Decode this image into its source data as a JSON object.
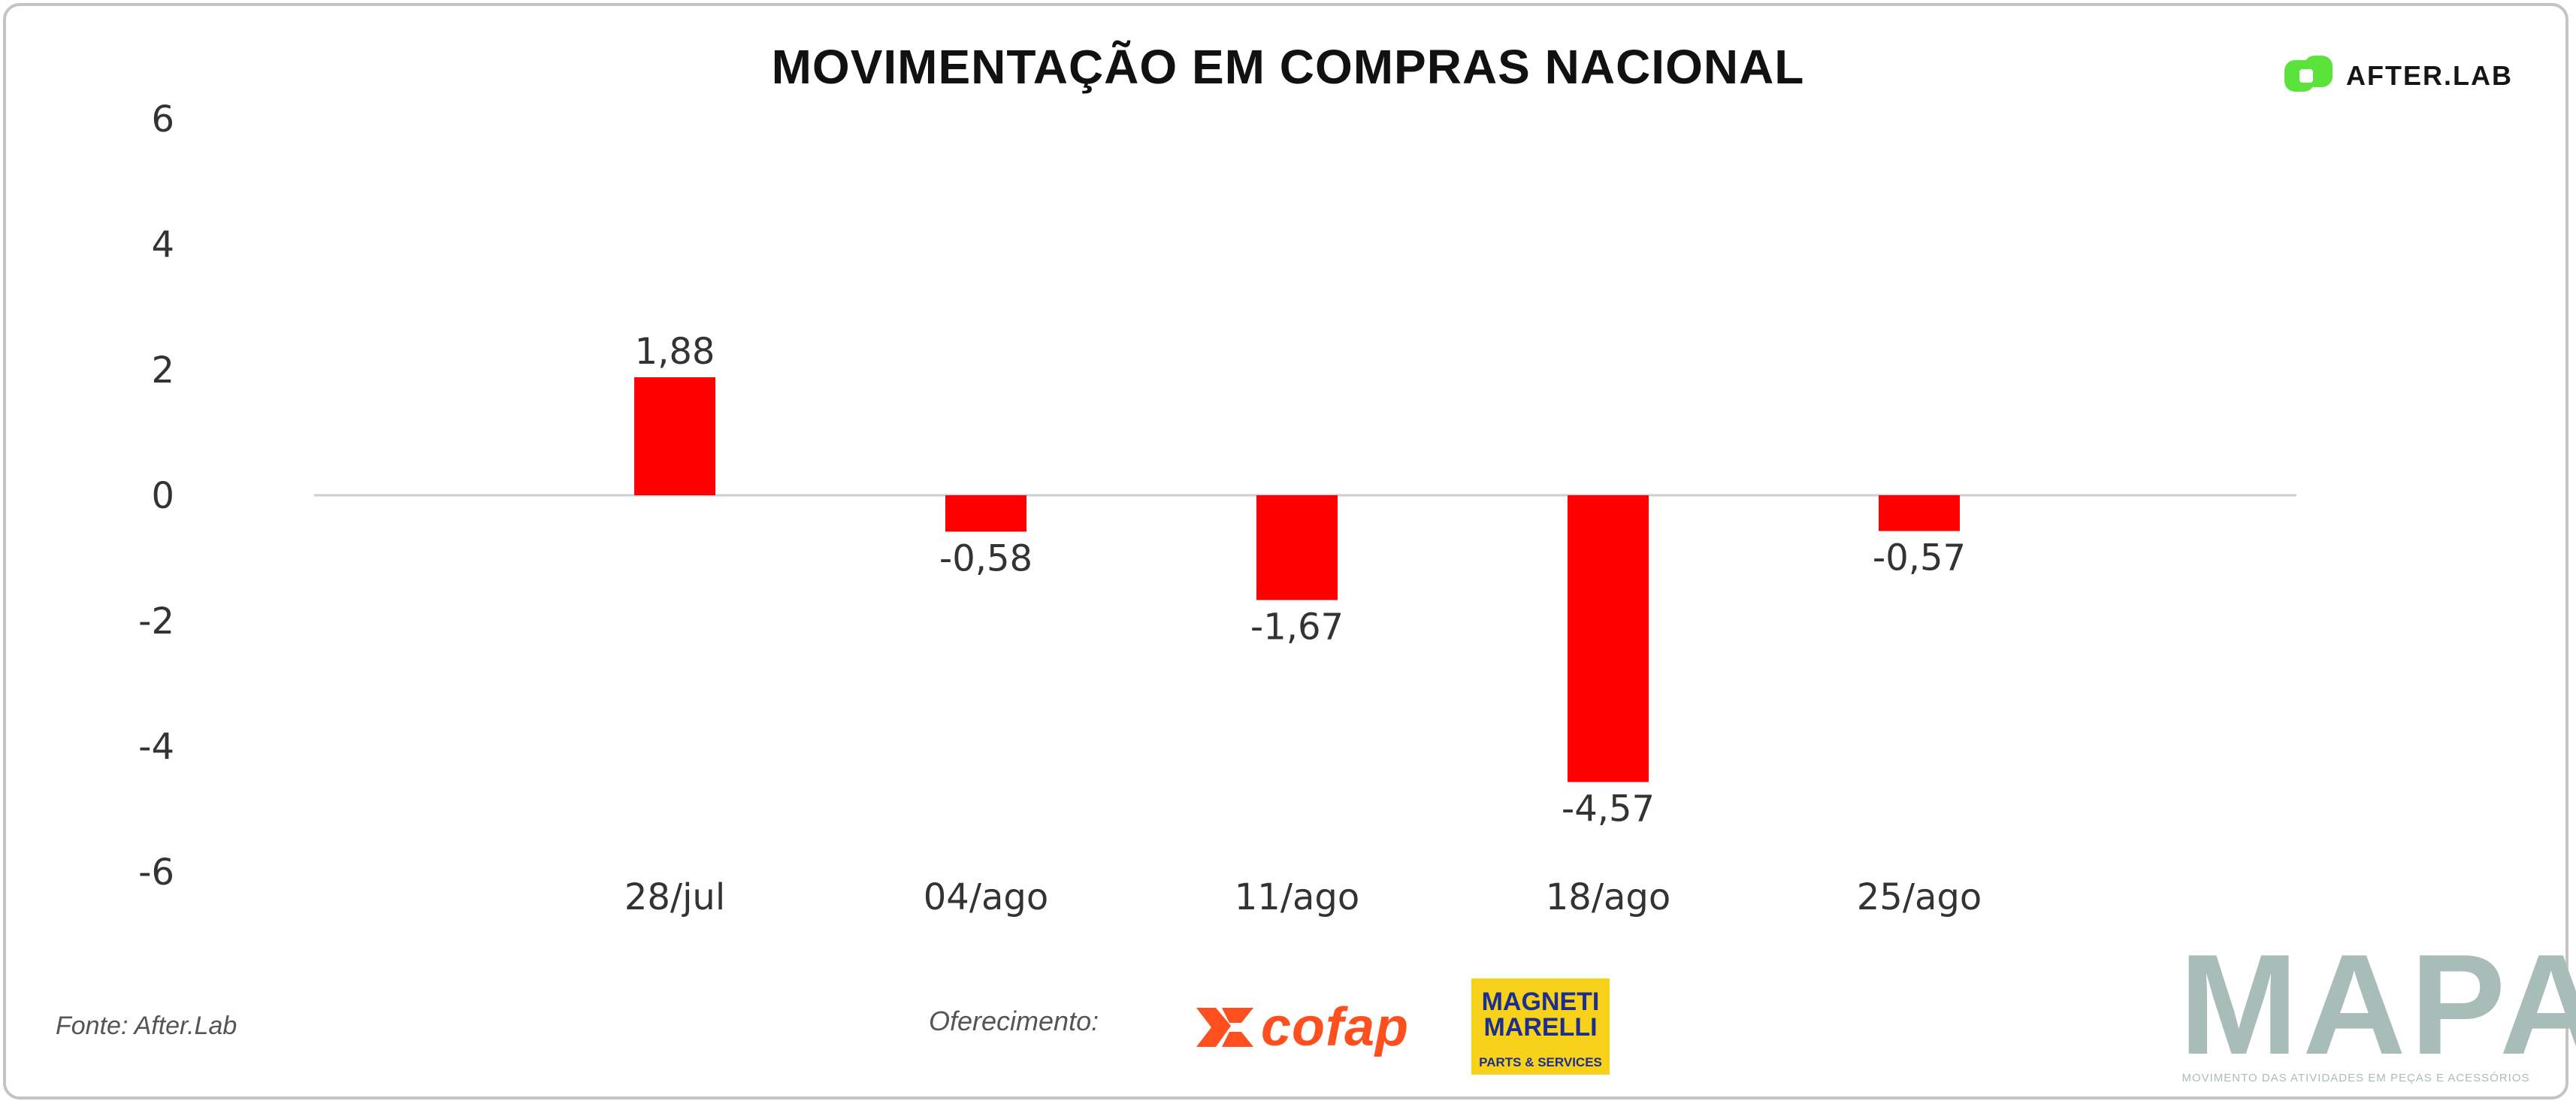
{
  "header": {
    "title": "MOVIMENTAÇÃO EM COMPRAS NACIONAL",
    "brand": "AFTER.LAB",
    "brand_color": "#5be33b"
  },
  "chart_data": {
    "type": "bar",
    "title": "MOVIMENTAÇÃO EM COMPRAS NACIONAL",
    "categories": [
      "28/jul",
      "04/ago",
      "11/ago",
      "18/ago",
      "25/ago"
    ],
    "values": [
      1.88,
      -0.58,
      -1.67,
      -4.57,
      -0.57
    ],
    "data_labels": [
      "1,88",
      "-0,58",
      "-1,67",
      "-4,57",
      "-0,57"
    ],
    "yticks": [
      6,
      4,
      2,
      0,
      -2,
      -4,
      -6
    ],
    "ylim": [
      -6,
      6
    ],
    "xlabel": "",
    "ylabel": "",
    "bar_color": "#ff0000",
    "grid": false,
    "legend": "none"
  },
  "footer": {
    "source": "Fonte: After.Lab",
    "sponsor_label": "Oferecimento:",
    "sponsors": {
      "cofap": "cofap",
      "magneti_line1": "MAGNETI",
      "magneti_line2": "MARELLI",
      "magneti_sub": "PARTS & SERVICES"
    },
    "mapa_word": "MAPA",
    "mapa_tagline": "MOVIMENTO DAS ATIVIDADES EM PEÇAS E ACESSÓRIOS"
  }
}
